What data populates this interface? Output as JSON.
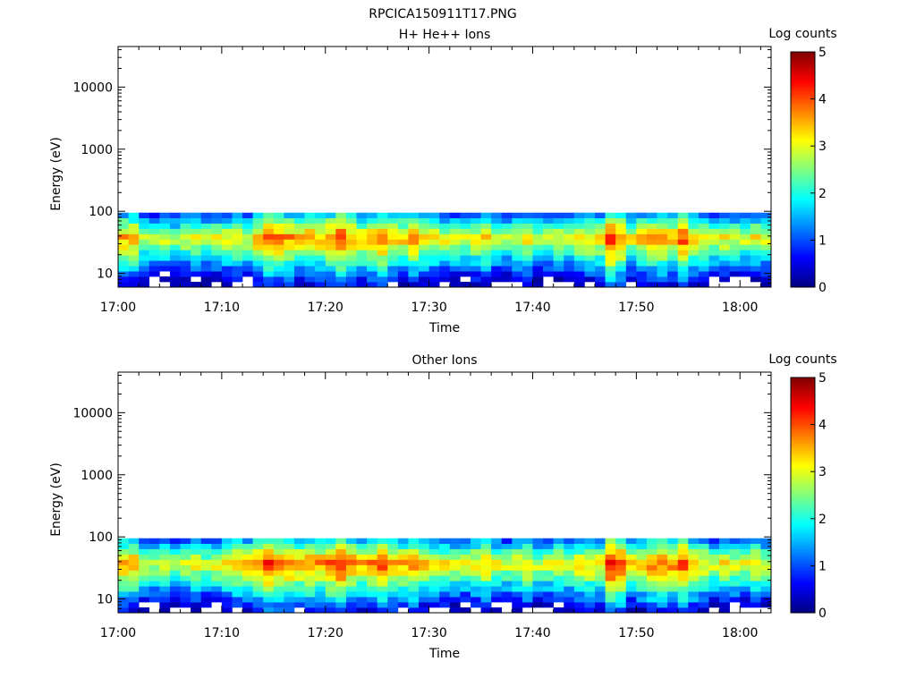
{
  "figure_title": "RPCICA150911T17.PNG",
  "chart_data": [
    {
      "type": "heatmap",
      "title": "H+ He++ Ions",
      "xlabel": "Time",
      "ylabel": "Energy (eV)",
      "yscale": "log",
      "xlim": [
        "17:00",
        "18:03"
      ],
      "ylim": [
        6,
        45000
      ],
      "x_ticks": [
        "17:00",
        "17:10",
        "17:20",
        "17:30",
        "17:40",
        "17:50",
        "18:00"
      ],
      "y_ticks": [
        "10",
        "100",
        "1000",
        "10000"
      ],
      "colorbar": {
        "label": "Log counts",
        "range": [
          0,
          5
        ],
        "ticks": [
          "0",
          "1",
          "2",
          "3",
          "4",
          "5"
        ]
      },
      "grid": false,
      "peak_energy_ev": 37,
      "time_minutes": [
        0,
        1,
        2,
        3,
        4,
        5,
        6,
        7,
        8,
        9,
        10,
        11,
        12,
        13,
        14,
        15,
        16,
        17,
        18,
        19,
        20,
        21,
        22,
        23,
        24,
        25,
        26,
        27,
        28,
        29,
        30,
        31,
        32,
        33,
        34,
        35,
        36,
        37,
        38,
        39,
        40,
        41,
        42,
        43,
        44,
        45,
        46,
        47,
        48,
        49,
        50,
        51,
        52,
        53,
        54,
        55,
        56,
        57,
        58,
        59,
        60,
        61,
        62
      ],
      "peak_log_counts": [
        3.6,
        3.7,
        3.0,
        2.9,
        3.0,
        2.8,
        3.0,
        3.1,
        2.9,
        3.1,
        3.2,
        3.4,
        3.2,
        3.6,
        4.1,
        3.9,
        3.8,
        3.5,
        3.7,
        3.6,
        3.9,
        4.2,
        3.7,
        3.5,
        3.8,
        4.0,
        3.6,
        3.5,
        3.8,
        3.4,
        3.3,
        3.2,
        3.1,
        3.0,
        3.3,
        3.5,
        3.1,
        2.9,
        3.2,
        3.4,
        2.9,
        3.0,
        3.2,
        3.1,
        3.3,
        3.4,
        3.3,
        4.4,
        4.0,
        3.2,
        3.5,
        3.7,
        3.8,
        3.6,
        4.1,
        3.5,
        3.3,
        3.0,
        3.2,
        3.1,
        3.0,
        3.3,
        3.0
      ]
    },
    {
      "type": "heatmap",
      "title": "Other Ions",
      "xlabel": "Time",
      "ylabel": "Energy (eV)",
      "yscale": "log",
      "xlim": [
        "17:00",
        "18:03"
      ],
      "ylim": [
        6,
        45000
      ],
      "x_ticks": [
        "17:00",
        "17:10",
        "17:20",
        "17:30",
        "17:40",
        "17:50",
        "18:00"
      ],
      "y_ticks": [
        "10",
        "100",
        "1000",
        "10000"
      ],
      "colorbar": {
        "label": "Log counts",
        "range": [
          0,
          5
        ],
        "ticks": [
          "0",
          "1",
          "2",
          "3",
          "4",
          "5"
        ]
      },
      "grid": false,
      "peak_energy_ev": 37,
      "time_minutes": [
        0,
        1,
        2,
        3,
        4,
        5,
        6,
        7,
        8,
        9,
        10,
        11,
        12,
        13,
        14,
        15,
        16,
        17,
        18,
        19,
        20,
        21,
        22,
        23,
        24,
        25,
        26,
        27,
        28,
        29,
        30,
        31,
        32,
        33,
        34,
        35,
        36,
        37,
        38,
        39,
        40,
        41,
        42,
        43,
        44,
        45,
        46,
        47,
        48,
        49,
        50,
        51,
        52,
        53,
        54,
        55,
        56,
        57,
        58,
        59,
        60,
        61,
        62
      ],
      "peak_log_counts": [
        3.7,
        3.8,
        3.2,
        3.0,
        3.1,
        2.9,
        3.1,
        3.2,
        3.0,
        3.2,
        3.4,
        3.6,
        3.5,
        3.9,
        4.3,
        4.1,
        4.0,
        3.7,
        3.9,
        3.8,
        4.1,
        4.4,
        3.9,
        3.6,
        3.9,
        4.1,
        3.8,
        3.6,
        3.9,
        3.5,
        3.4,
        3.3,
        3.2,
        3.1,
        3.4,
        3.6,
        3.2,
        3.0,
        3.3,
        3.5,
        3.0,
        3.1,
        3.3,
        3.2,
        3.4,
        3.5,
        3.4,
        4.5,
        4.2,
        3.3,
        3.6,
        3.9,
        4.0,
        3.8,
        4.2,
        3.7,
        3.4,
        3.1,
        3.3,
        3.2,
        3.1,
        3.4,
        3.1
      ]
    }
  ]
}
